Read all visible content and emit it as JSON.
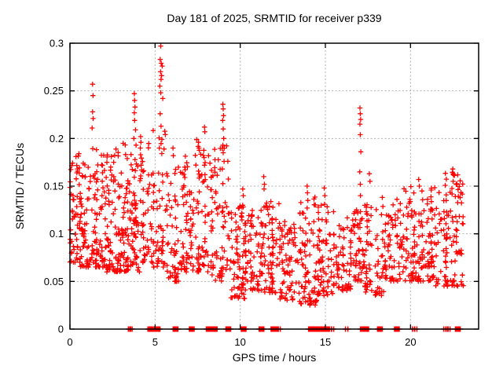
{
  "chart_data": {
    "type": "scatter",
    "title": "Day 181 of 2025, SRMTID for receiver p339",
    "xlabel": "GPS time / hours",
    "ylabel": "SRMTID / TECUs",
    "xlim": [
      0,
      24
    ],
    "ylim": [
      0,
      0.3
    ],
    "xticks": [
      0,
      5,
      10,
      15,
      20
    ],
    "xtick_labels": [
      "0",
      "5",
      "10",
      "15",
      "20"
    ],
    "yticks": [
      0,
      0.05,
      0.1,
      0.15,
      0.2,
      0.25,
      0.3
    ],
    "ytick_labels": [
      "0",
      "0.05",
      "0.1",
      "0.15",
      "0.2",
      "0.25",
      "0.3"
    ],
    "grid": true,
    "legend": "none",
    "marker": "plus",
    "marker_color": "#ff0000",
    "grid_color": "#b0b0b0",
    "border_color": "#000000",
    "background": "#ffffff",
    "series": [
      {
        "name": "SRMTID",
        "color": "#ff0000"
      }
    ],
    "notable_points": [
      [
        1.33,
        0.257
      ],
      [
        1.35,
        0.245
      ],
      [
        1.33,
        0.228
      ],
      [
        1.36,
        0.221
      ],
      [
        1.3,
        0.211
      ],
      [
        3.78,
        0.247
      ],
      [
        3.8,
        0.24
      ],
      [
        3.82,
        0.233
      ],
      [
        3.78,
        0.227
      ],
      [
        3.8,
        0.219
      ],
      [
        3.85,
        0.209
      ],
      [
        3.75,
        0.2
      ],
      [
        3.88,
        0.193
      ],
      [
        4.15,
        0.202
      ],
      [
        4.17,
        0.196
      ],
      [
        4.13,
        0.19
      ],
      [
        4.15,
        0.183
      ],
      [
        4.18,
        0.172
      ],
      [
        5.33,
        0.297
      ],
      [
        5.3,
        0.283
      ],
      [
        5.36,
        0.279
      ],
      [
        5.42,
        0.276
      ],
      [
        5.32,
        0.27
      ],
      [
        5.38,
        0.266
      ],
      [
        5.35,
        0.262
      ],
      [
        5.28,
        0.255
      ],
      [
        5.33,
        0.248
      ],
      [
        5.45,
        0.242
      ],
      [
        5.3,
        0.226
      ],
      [
        5.35,
        0.213
      ],
      [
        5.4,
        0.199
      ],
      [
        5.25,
        0.19
      ],
      [
        6.05,
        0.19
      ],
      [
        6.07,
        0.182
      ],
      [
        7.55,
        0.196
      ],
      [
        7.58,
        0.19
      ],
      [
        7.9,
        0.212
      ],
      [
        7.92,
        0.207
      ],
      [
        7.88,
        0.18
      ],
      [
        7.9,
        0.172
      ],
      [
        7.93,
        0.162
      ],
      [
        7.87,
        0.155
      ],
      [
        8.98,
        0.236
      ],
      [
        9.0,
        0.231
      ],
      [
        9.02,
        0.224
      ],
      [
        8.97,
        0.219
      ],
      [
        9.0,
        0.21
      ],
      [
        9.03,
        0.2
      ],
      [
        8.98,
        0.193
      ],
      [
        9.0,
        0.185
      ],
      [
        9.05,
        0.176
      ],
      [
        8.95,
        0.168
      ],
      [
        10.15,
        0.147
      ],
      [
        10.18,
        0.14
      ],
      [
        11.38,
        0.16
      ],
      [
        11.42,
        0.152
      ],
      [
        11.4,
        0.147
      ],
      [
        13.93,
        0.15
      ],
      [
        13.95,
        0.143
      ],
      [
        13.97,
        0.135
      ],
      [
        13.93,
        0.127
      ],
      [
        14.93,
        0.148
      ],
      [
        14.97,
        0.14
      ],
      [
        14.95,
        0.131
      ],
      [
        17.03,
        0.232
      ],
      [
        17.05,
        0.226
      ],
      [
        17.07,
        0.22
      ],
      [
        17.03,
        0.215
      ],
      [
        17.05,
        0.204
      ],
      [
        17.08,
        0.186
      ],
      [
        17.02,
        0.165
      ],
      [
        17.05,
        0.152
      ],
      [
        17.06,
        0.14
      ],
      [
        17.58,
        0.163
      ],
      [
        17.62,
        0.155
      ],
      [
        20.48,
        0.157
      ],
      [
        20.52,
        0.15
      ],
      [
        22.48,
        0.168
      ],
      [
        22.52,
        0.162
      ],
      [
        22.5,
        0.155
      ]
    ],
    "zero_marker_hours_block": [
      4.72,
      4.95,
      5.15,
      6.2,
      7.15,
      8.15,
      8.3,
      8.5,
      9.3,
      10.2,
      11.25,
      11.95,
      12.1,
      14.15,
      14.35,
      14.6,
      14.95,
      15.1,
      17.2,
      17.4,
      18.2,
      19.2,
      22.78
    ],
    "zero_marker_hours_pair": [
      3.5,
      3.58,
      12.28,
      15.3,
      15.42,
      16.25,
      20.18,
      20.3,
      22.02,
      22.14,
      22.25
    ],
    "density_bands": [
      {
        "x0": 0.0,
        "x1": 0.6,
        "n": 60,
        "ylo": 0.07,
        "yhi": 0.185,
        "skew": 1.6
      },
      {
        "x0": 0.6,
        "x1": 1.3,
        "n": 60,
        "ylo": 0.065,
        "yhi": 0.175,
        "skew": 1.6
      },
      {
        "x0": 1.3,
        "x1": 2.0,
        "n": 65,
        "ylo": 0.065,
        "yhi": 0.19,
        "skew": 1.7
      },
      {
        "x0": 2.0,
        "x1": 2.7,
        "n": 65,
        "ylo": 0.06,
        "yhi": 0.185,
        "skew": 1.6
      },
      {
        "x0": 2.7,
        "x1": 3.4,
        "n": 70,
        "ylo": 0.06,
        "yhi": 0.195,
        "skew": 1.7
      },
      {
        "x0": 3.4,
        "x1": 4.1,
        "n": 65,
        "ylo": 0.06,
        "yhi": 0.185,
        "skew": 1.6
      },
      {
        "x0": 4.1,
        "x1": 4.8,
        "n": 50,
        "ylo": 0.07,
        "yhi": 0.195,
        "skew": 1.7
      },
      {
        "x0": 4.8,
        "x1": 5.6,
        "n": 55,
        "ylo": 0.065,
        "yhi": 0.21,
        "skew": 1.9
      },
      {
        "x0": 5.6,
        "x1": 6.6,
        "n": 60,
        "ylo": 0.05,
        "yhi": 0.17,
        "skew": 1.7
      },
      {
        "x0": 6.6,
        "x1": 7.4,
        "n": 60,
        "ylo": 0.06,
        "yhi": 0.185,
        "skew": 1.6
      },
      {
        "x0": 7.4,
        "x1": 8.3,
        "n": 65,
        "ylo": 0.06,
        "yhi": 0.2,
        "skew": 1.8
      },
      {
        "x0": 8.3,
        "x1": 9.3,
        "n": 70,
        "ylo": 0.05,
        "yhi": 0.195,
        "skew": 1.8
      },
      {
        "x0": 9.3,
        "x1": 10.3,
        "n": 75,
        "ylo": 0.032,
        "yhi": 0.135,
        "skew": 1.5
      },
      {
        "x0": 10.3,
        "x1": 11.3,
        "n": 70,
        "ylo": 0.04,
        "yhi": 0.125,
        "skew": 1.5
      },
      {
        "x0": 11.3,
        "x1": 12.3,
        "n": 70,
        "ylo": 0.038,
        "yhi": 0.135,
        "skew": 1.5
      },
      {
        "x0": 12.3,
        "x1": 13.3,
        "n": 70,
        "ylo": 0.03,
        "yhi": 0.115,
        "skew": 1.4
      },
      {
        "x0": 13.3,
        "x1": 14.5,
        "n": 80,
        "ylo": 0.025,
        "yhi": 0.14,
        "skew": 1.5
      },
      {
        "x0": 14.5,
        "x1": 15.5,
        "n": 70,
        "ylo": 0.035,
        "yhi": 0.13,
        "skew": 1.5
      },
      {
        "x0": 15.5,
        "x1": 16.5,
        "n": 60,
        "ylo": 0.04,
        "yhi": 0.12,
        "skew": 1.4
      },
      {
        "x0": 16.5,
        "x1": 17.3,
        "n": 55,
        "ylo": 0.05,
        "yhi": 0.125,
        "skew": 1.4
      },
      {
        "x0": 17.3,
        "x1": 18.5,
        "n": 70,
        "ylo": 0.035,
        "yhi": 0.14,
        "skew": 1.5
      },
      {
        "x0": 18.5,
        "x1": 19.5,
        "n": 65,
        "ylo": 0.05,
        "yhi": 0.145,
        "skew": 1.5
      },
      {
        "x0": 19.5,
        "x1": 21.0,
        "n": 95,
        "ylo": 0.05,
        "yhi": 0.155,
        "skew": 1.5
      },
      {
        "x0": 21.0,
        "x1": 22.0,
        "n": 70,
        "ylo": 0.045,
        "yhi": 0.15,
        "skew": 1.5
      },
      {
        "x0": 22.0,
        "x1": 23.1,
        "n": 90,
        "ylo": 0.045,
        "yhi": 0.17,
        "skew": 1.5
      }
    ],
    "seed": 20250181
  }
}
